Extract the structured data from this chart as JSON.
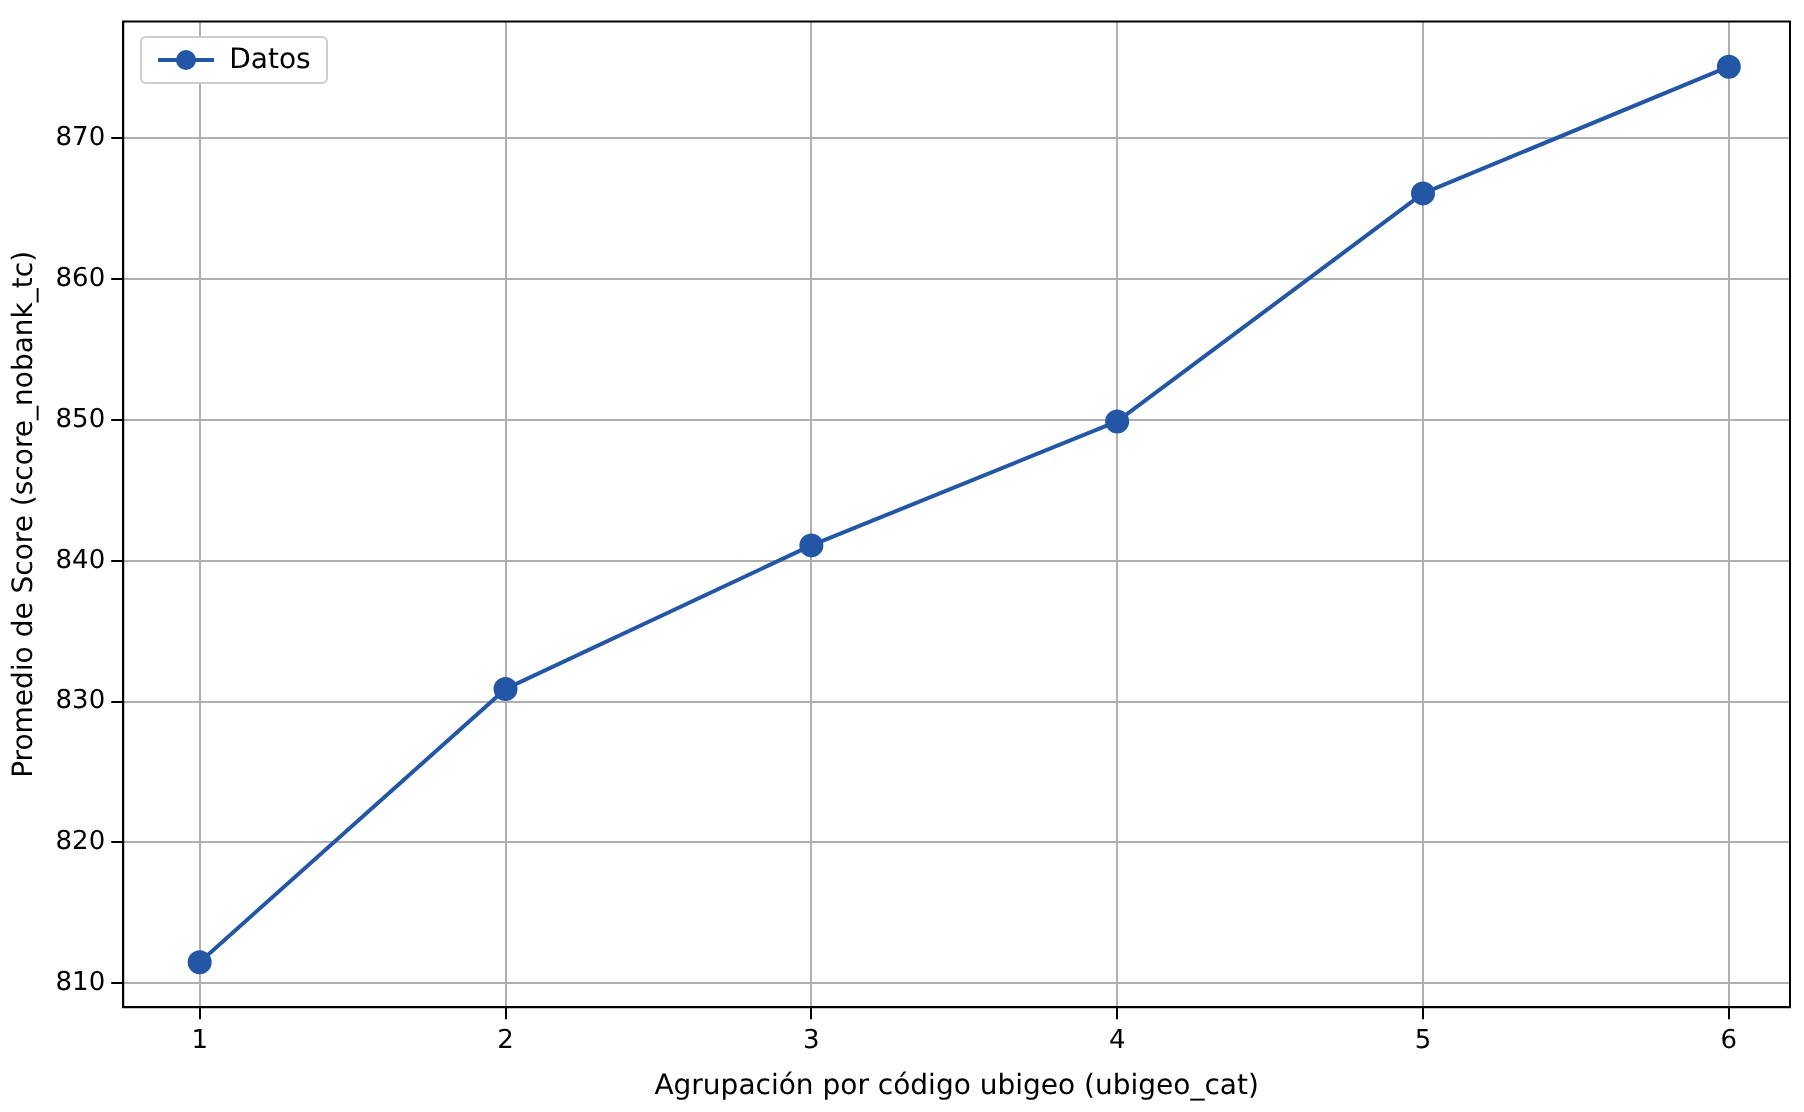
{
  "chart_data": {
    "type": "line",
    "xlabel": "Agrupación por código ubigeo (ubigeo_cat)",
    "ylabel": "Promedio de Score (score_nobank_tc)",
    "x": [
      1,
      2,
      3,
      4,
      5,
      6
    ],
    "series": [
      {
        "name": "Datos",
        "color": "#2456a6",
        "values": [
          811.5,
          830.9,
          841.1,
          849.9,
          866.1,
          875.1
        ]
      }
    ],
    "xlim": [
      0.75,
      6.2
    ],
    "xticks": [
      1,
      2,
      3,
      4,
      5,
      6
    ],
    "ylim": [
      808.3,
      878.3
    ],
    "yticks": [
      810,
      820,
      830,
      840,
      850,
      860,
      870
    ],
    "grid": true,
    "legend": "top left",
    "marker": "circle",
    "line_style": "solid"
  }
}
